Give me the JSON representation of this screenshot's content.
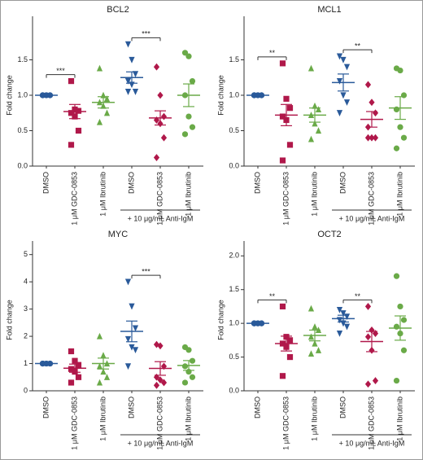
{
  "chart_data": [
    {
      "type": "dotplot",
      "title": "BCL2",
      "ylabel": "Fold change",
      "categories": [
        "DMSO",
        "1 μM GDC-0853",
        "1 μM Ibrutinib",
        "DMSO",
        "1 μM GDC-0853",
        "1 μM Ibrutinib"
      ],
      "colors": [
        "#2a5a9a",
        "#b0184a",
        "#6aaa48",
        "#2a5a9a",
        "#b0184a",
        "#6aaa48"
      ],
      "markers": [
        "circle",
        "square",
        "triangle",
        "triangle-down",
        "diamond",
        "circle"
      ],
      "points": [
        [
          1,
          1,
          1,
          1,
          1,
          1,
          1
        ],
        [
          1.2,
          0.8,
          0.78,
          0.75,
          0.7,
          0.5,
          0.3
        ],
        [
          1.38,
          1.0,
          0.95,
          0.9,
          0.85,
          0.75,
          0.62
        ],
        [
          1.72,
          1.5,
          1.3,
          1.2,
          1.15,
          1.05,
          1.05
        ],
        [
          1.4,
          1.0,
          0.7,
          0.65,
          0.6,
          0.4,
          0.12
        ],
        [
          1.6,
          1.55,
          1.2,
          1.0,
          0.7,
          0.55,
          0.45
        ]
      ],
      "means": [
        1.0,
        0.77,
        0.9,
        1.25,
        0.68,
        1.0
      ],
      "sems": [
        0,
        0.1,
        0.08,
        0.08,
        0.1,
        0.16
      ],
      "ylim": [
        0,
        2
      ],
      "yticks": [
        {
          "value": 0,
          "label": "0.0"
        },
        {
          "value": 0.5,
          "label": "0.5"
        },
        {
          "value": 1,
          "label": "1.0"
        },
        {
          "value": 1.5,
          "label": "1.5"
        }
      ],
      "annotations": [
        {
          "label": "***",
          "between": [
            0,
            1
          ]
        },
        {
          "label": "***",
          "between": [
            3,
            4
          ]
        }
      ],
      "group_label": "+ 10 μg/mL Anti-IgM"
    },
    {
      "type": "dotplot",
      "title": "MCL1",
      "ylabel": "Fold change",
      "categories": [
        "DMSO",
        "1 μM GDC-0853",
        "1 μM Ibrutinib",
        "DMSO",
        "1 μM GDC-0853",
        "1 μM Ibrutinib"
      ],
      "colors": [
        "#2a5a9a",
        "#b0184a",
        "#6aaa48",
        "#2a5a9a",
        "#b0184a",
        "#6aaa48"
      ],
      "markers": [
        "circle",
        "square",
        "triangle",
        "triangle-down",
        "diamond",
        "circle"
      ],
      "points": [
        [
          1,
          1,
          1,
          1,
          1,
          1,
          1
        ],
        [
          1.45,
          0.95,
          0.82,
          0.7,
          0.65,
          0.3,
          0.08
        ],
        [
          1.38,
          0.85,
          0.8,
          0.72,
          0.6,
          0.5,
          0.38
        ],
        [
          1.55,
          1.5,
          1.4,
          1.2,
          1.0,
          0.9,
          0.75
        ],
        [
          1.15,
          0.9,
          0.75,
          0.55,
          0.4,
          0.4,
          0.4
        ],
        [
          1.38,
          1.35,
          1.0,
          0.8,
          0.55,
          0.4,
          0.25
        ]
      ],
      "means": [
        1.0,
        0.72,
        0.72,
        1.18,
        0.66,
        0.82
      ],
      "sems": [
        0,
        0.15,
        0.1,
        0.12,
        0.11,
        0.16
      ],
      "ylim": [
        0,
        2
      ],
      "yticks": [
        {
          "value": 0,
          "label": "0.0"
        },
        {
          "value": 0.5,
          "label": "0.5"
        },
        {
          "value": 1,
          "label": "1.0"
        },
        {
          "value": 1.5,
          "label": "1.5"
        }
      ],
      "annotations": [
        {
          "label": "**",
          "between": [
            0,
            1
          ]
        },
        {
          "label": "**",
          "between": [
            3,
            4
          ]
        }
      ],
      "group_label": "+ 10 μg/mL Anti-IgM"
    },
    {
      "type": "dotplot",
      "title": "MYC",
      "ylabel": "Fold change",
      "categories": [
        "DMSO",
        "1 μM GDC-0853",
        "1 μM Ibrutinib",
        "DMSO",
        "1 μM GDC-0853",
        "1 μM Ibrutinib"
      ],
      "colors": [
        "#2a5a9a",
        "#b0184a",
        "#6aaa48",
        "#2a5a9a",
        "#b0184a",
        "#6aaa48"
      ],
      "markers": [
        "circle",
        "square",
        "triangle",
        "triangle-down",
        "diamond",
        "circle"
      ],
      "points": [
        [
          1,
          1,
          1,
          1,
          1,
          1,
          1
        ],
        [
          1.45,
          1.1,
          0.95,
          0.8,
          0.7,
          0.5,
          0.3
        ],
        [
          2.0,
          1.3,
          1.0,
          0.9,
          0.7,
          0.5,
          0.3
        ],
        [
          4.0,
          3.1,
          2.3,
          1.9,
          1.6,
          1.5,
          0.9
        ],
        [
          1.7,
          1.65,
          0.9,
          0.5,
          0.4,
          0.3,
          0.2
        ],
        [
          1.6,
          1.5,
          1.1,
          0.9,
          0.7,
          0.5,
          0.3
        ]
      ],
      "means": [
        1.0,
        0.83,
        1.0,
        2.18,
        0.82,
        0.93
      ],
      "sems": [
        0,
        0.15,
        0.2,
        0.38,
        0.25,
        0.18
      ],
      "ylim": [
        0,
        5.2
      ],
      "yticks": [
        0,
        1,
        2,
        3,
        4,
        5
      ],
      "annotations": [
        {
          "label": "***",
          "between": [
            3,
            4
          ]
        }
      ],
      "group_label": "+ 10 μg/mL Anti-IgM"
    },
    {
      "type": "dotplot",
      "title": "OCT2",
      "ylabel": "Fold change",
      "categories": [
        "DMSO",
        "1 μM GDC-0853",
        "1 μM Ibrutinib",
        "DMSO",
        "1 μM GDC-0853",
        "1 μM Ibrutinib"
      ],
      "colors": [
        "#2a5a9a",
        "#b0184a",
        "#6aaa48",
        "#2a5a9a",
        "#b0184a",
        "#6aaa48"
      ],
      "markers": [
        "circle",
        "square",
        "triangle",
        "triangle-down",
        "diamond",
        "circle"
      ],
      "points": [
        [
          1,
          1,
          1,
          1,
          1,
          1,
          1
        ],
        [
          1.25,
          0.8,
          0.75,
          0.7,
          0.65,
          0.5,
          0.22
        ],
        [
          1.22,
          0.95,
          0.9,
          0.8,
          0.7,
          0.6,
          0.55
        ],
        [
          1.2,
          1.15,
          1.1,
          1.05,
          1.0,
          0.95,
          0.85
        ],
        [
          1.25,
          0.9,
          0.85,
          0.8,
          0.6,
          0.15,
          0.1
        ],
        [
          1.7,
          1.25,
          1.05,
          0.95,
          0.85,
          0.6,
          0.15
        ]
      ],
      "means": [
        1.0,
        0.7,
        0.82,
        1.07,
        0.73,
        0.93
      ],
      "sems": [
        0,
        0.11,
        0.08,
        0.05,
        0.15,
        0.18
      ],
      "ylim": [
        0,
        2.1
      ],
      "yticks": [
        {
          "value": 0,
          "label": "0.0"
        },
        {
          "value": 0.5,
          "label": "0.5"
        },
        {
          "value": 1,
          "label": "1.0"
        },
        {
          "value": 1.5,
          "label": "1.5"
        },
        {
          "value": 2,
          "label": "2.0"
        }
      ],
      "annotations": [
        {
          "label": "**",
          "between": [
            0,
            1
          ]
        },
        {
          "label": "**",
          "between": [
            3,
            4
          ]
        }
      ],
      "group_label": "+ 10 μg/mL Anti-IgM"
    }
  ]
}
